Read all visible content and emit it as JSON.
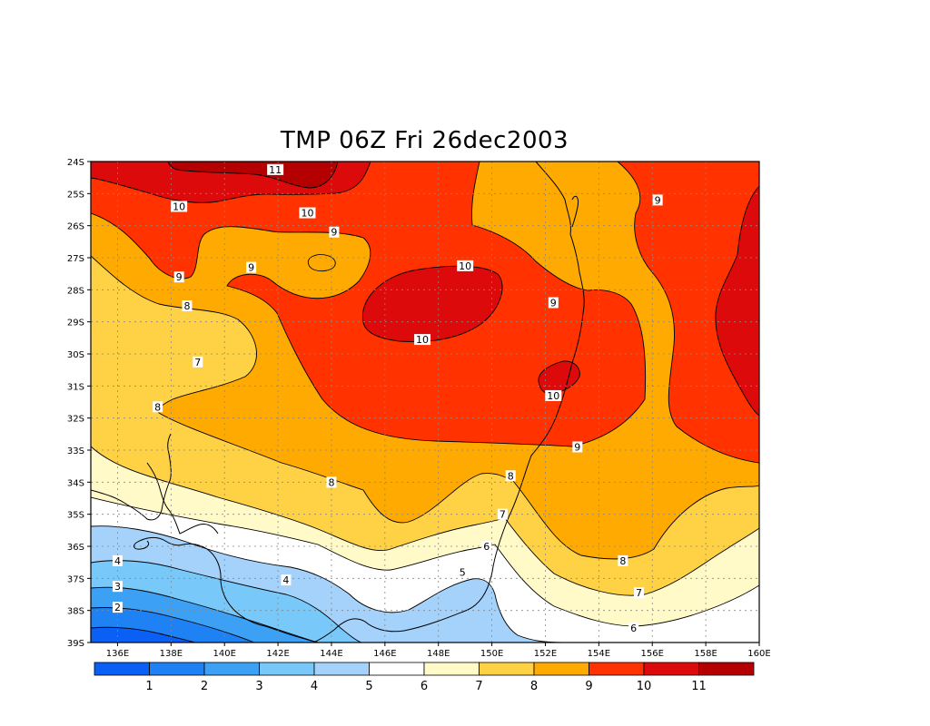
{
  "title": "TMP 06Z Fri 26dec2003",
  "x_ticks": [
    "136E",
    "138E",
    "140E",
    "142E",
    "144E",
    "146E",
    "148E",
    "150E",
    "152E",
    "154E",
    "156E",
    "158E",
    "160E"
  ],
  "y_ticks": [
    "24S",
    "25S",
    "26S",
    "27S",
    "28S",
    "29S",
    "30S",
    "31S",
    "32S",
    "33S",
    "34S",
    "35S",
    "36S",
    "37S",
    "38S",
    "39S"
  ],
  "contour_labels": [
    {
      "text": "11",
      "lon": 141.9,
      "lat": -24.25
    },
    {
      "text": "10",
      "lon": 138.3,
      "lat": -25.4
    },
    {
      "text": "10",
      "lon": 143.1,
      "lat": -25.6
    },
    {
      "text": "9",
      "lon": 144.1,
      "lat": -26.2
    },
    {
      "text": "9",
      "lon": 138.3,
      "lat": -27.6
    },
    {
      "text": "9",
      "lon": 141.0,
      "lat": -27.3
    },
    {
      "text": "10",
      "lon": 149.0,
      "lat": -27.25
    },
    {
      "text": "10",
      "lon": 147.4,
      "lat": -29.55
    },
    {
      "text": "9",
      "lon": 152.3,
      "lat": -28.4
    },
    {
      "text": "8",
      "lon": 138.6,
      "lat": -28.5
    },
    {
      "text": "7",
      "lon": 139.0,
      "lat": -30.25
    },
    {
      "text": "10",
      "lon": 152.3,
      "lat": -31.3
    },
    {
      "text": "8",
      "lon": 137.5,
      "lat": -31.65
    },
    {
      "text": "9",
      "lon": 153.2,
      "lat": -32.9
    },
    {
      "text": "9",
      "lon": 156.2,
      "lat": -25.2
    },
    {
      "text": "8",
      "lon": 144.0,
      "lat": -34.0
    },
    {
      "text": "8",
      "lon": 150.7,
      "lat": -33.8
    },
    {
      "text": "7",
      "lon": 150.4,
      "lat": -35.0
    },
    {
      "text": "6",
      "lon": 149.8,
      "lat": -36.0
    },
    {
      "text": "5",
      "lon": 148.9,
      "lat": -36.8
    },
    {
      "text": "8",
      "lon": 154.9,
      "lat": -36.45
    },
    {
      "text": "7",
      "lon": 155.5,
      "lat": -37.45
    },
    {
      "text": "6",
      "lon": 155.3,
      "lat": -38.55
    },
    {
      "text": "4",
      "lon": 136.0,
      "lat": -36.45
    },
    {
      "text": "4",
      "lon": 142.3,
      "lat": -37.05
    },
    {
      "text": "3",
      "lon": 136.0,
      "lat": -37.25
    },
    {
      "text": "2",
      "lon": 136.0,
      "lat": -37.9
    }
  ],
  "colorbar": {
    "colors": [
      "#0a5ff5",
      "#1e82f5",
      "#3ca0f5",
      "#78c8fa",
      "#a5d2fa",
      "#ffffff",
      "#fffac8",
      "#ffd246",
      "#ffaa00",
      "#ff3200",
      "#dc0a0a",
      "#b40000"
    ],
    "labels": [
      "1",
      "2",
      "3",
      "4",
      "5",
      "6",
      "7",
      "8",
      "9",
      "10",
      "11"
    ]
  },
  "palette": {
    "lt1": "#0a5ff5",
    "1": "#1e82f5",
    "2": "#3ca0f5",
    "3": "#78c8fa",
    "4": "#a5d2fa",
    "5": "#ffffff",
    "6": "#fffac8",
    "7": "#ffd246",
    "8": "#ffaa00",
    "9": "#ff3200",
    "10": "#dc0a0a",
    "11": "#b40000"
  }
}
